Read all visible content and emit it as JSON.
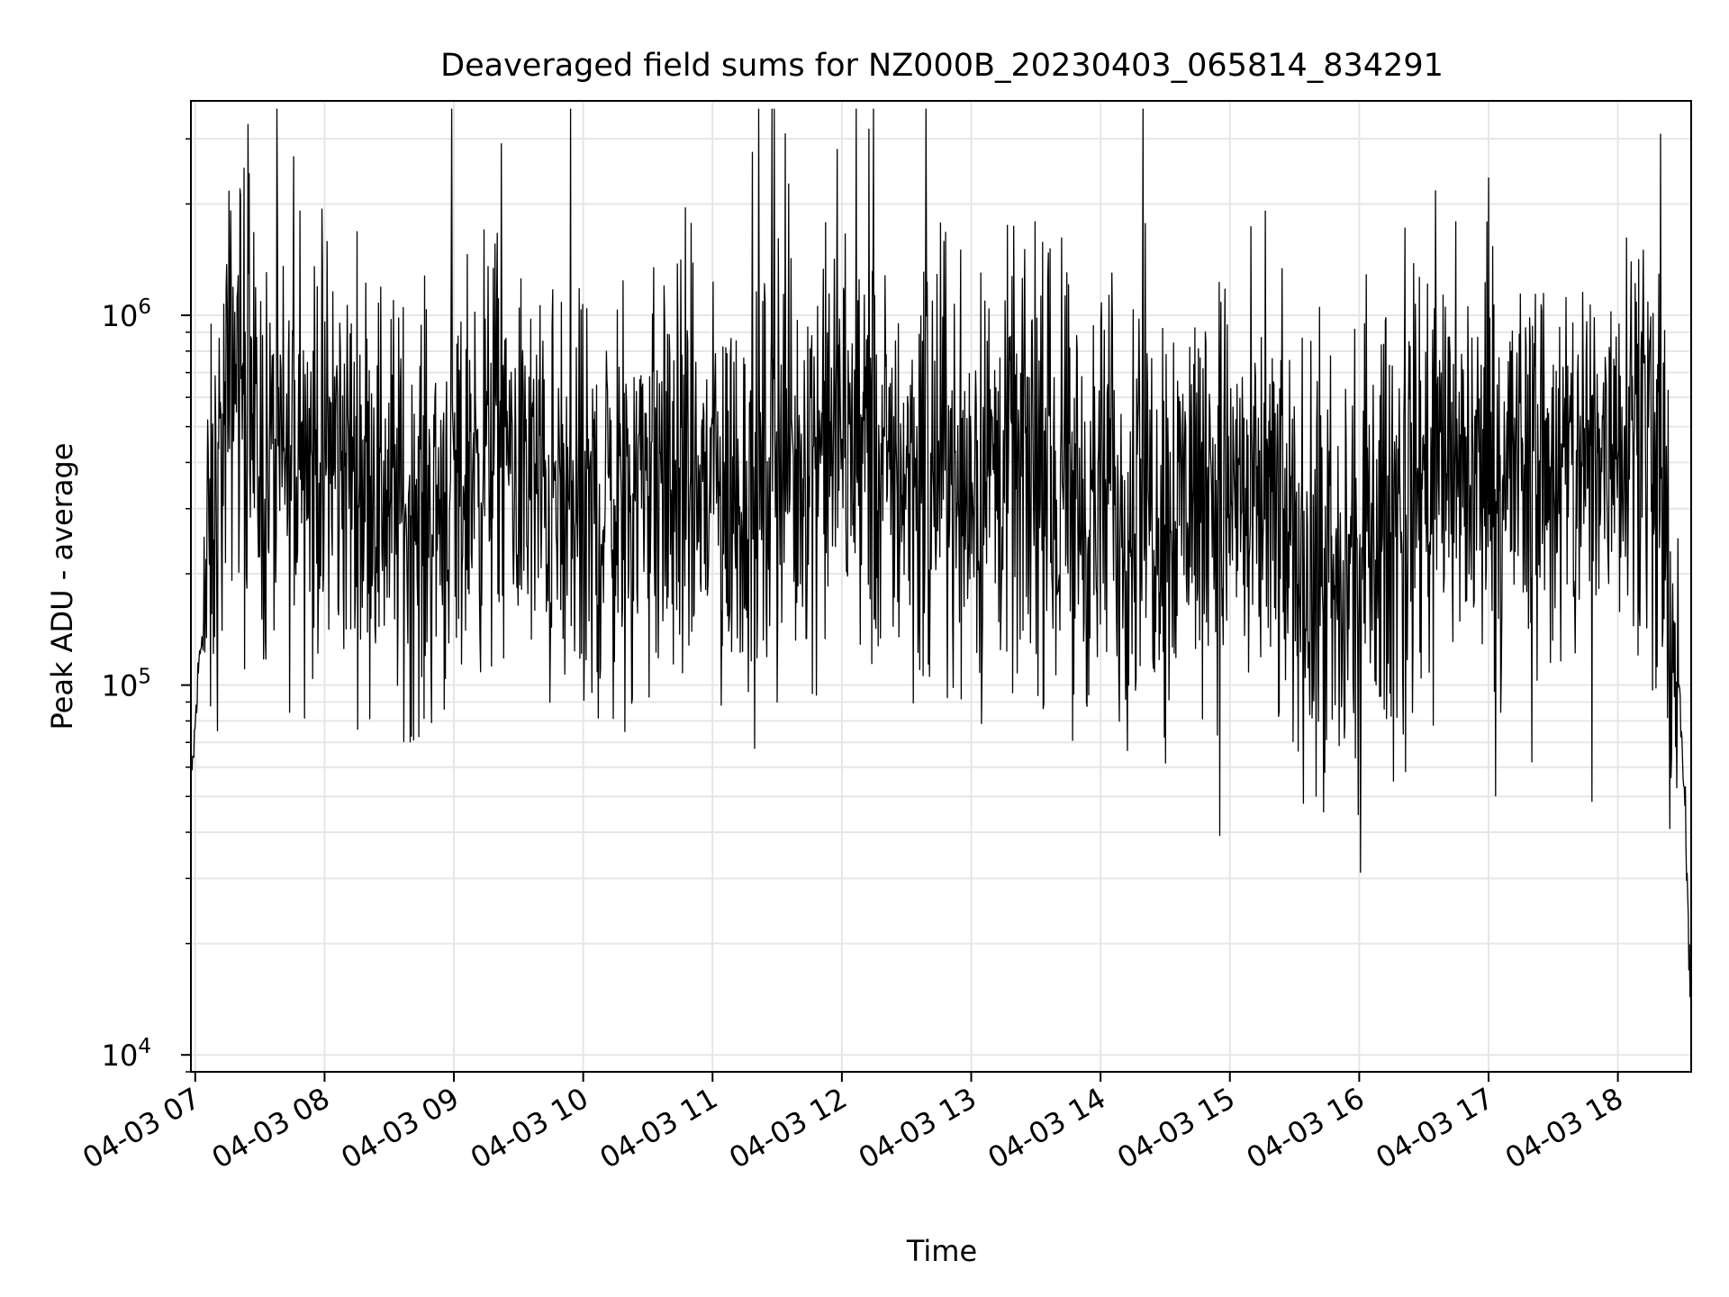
{
  "chart_data": {
    "type": "line",
    "title": "Deaveraged field sums for NZ000B_20230403_065814_834291",
    "xlabel": "Time",
    "ylabel": "Peak ADU - average",
    "yscale": "log",
    "ylim": [
      9000,
      3800000
    ],
    "xlim": [
      "2023-04-03 06:58",
      "2023-04-03 18:34"
    ],
    "grid": true,
    "line_color": "#000000",
    "grid_color": "#e6e6e6",
    "x_ticks": [
      {
        "value": "2023-04-03 07:00",
        "label": "04-03 07"
      },
      {
        "value": "2023-04-03 08:00",
        "label": "04-03 08"
      },
      {
        "value": "2023-04-03 09:00",
        "label": "04-03 09"
      },
      {
        "value": "2023-04-03 10:00",
        "label": "04-03 10"
      },
      {
        "value": "2023-04-03 11:00",
        "label": "04-03 11"
      },
      {
        "value": "2023-04-03 12:00",
        "label": "04-03 12"
      },
      {
        "value": "2023-04-03 13:00",
        "label": "04-03 13"
      },
      {
        "value": "2023-04-03 14:00",
        "label": "04-03 14"
      },
      {
        "value": "2023-04-03 15:00",
        "label": "04-03 15"
      },
      {
        "value": "2023-04-03 16:00",
        "label": "04-03 16"
      },
      {
        "value": "2023-04-03 17:00",
        "label": "04-03 17"
      },
      {
        "value": "2023-04-03 18:00",
        "label": "04-03 18"
      }
    ],
    "y_ticks": [
      {
        "value": 10000,
        "base": "10",
        "exp": "4"
      },
      {
        "value": 100000,
        "base": "10",
        "exp": "5"
      },
      {
        "value": 1000000,
        "base": "10",
        "exp": "6"
      }
    ],
    "series": [
      {
        "points": [
          [
            "2023-04-03 06:58",
            50000
          ],
          [
            "2023-04-03 07:02",
            120000
          ],
          [
            "2023-04-03 07:06",
            200000
          ],
          [
            "2023-04-03 07:10",
            300000
          ],
          [
            "2023-04-03 07:14",
            500000
          ],
          [
            "2023-04-03 07:18",
            800000
          ],
          [
            "2023-04-03 07:22",
            700000
          ],
          [
            "2023-04-03 07:26",
            500000
          ],
          [
            "2023-04-03 07:30",
            400000
          ],
          [
            "2023-04-03 07:40",
            380000
          ],
          [
            "2023-04-03 07:50",
            400000
          ],
          [
            "2023-04-03 08:00",
            420000
          ],
          [
            "2023-04-03 08:10",
            400000
          ],
          [
            "2023-04-03 08:20",
            380000
          ],
          [
            "2023-04-03 08:30",
            340000
          ],
          [
            "2023-04-03 08:40",
            280000
          ],
          [
            "2023-04-03 08:50",
            300000
          ],
          [
            "2023-04-03 09:00",
            360000
          ],
          [
            "2023-04-03 09:10",
            420000
          ],
          [
            "2023-04-03 09:20",
            450000
          ],
          [
            "2023-04-03 09:30",
            400000
          ],
          [
            "2023-04-03 09:40",
            330000
          ],
          [
            "2023-04-03 09:50",
            280000
          ],
          [
            "2023-04-03 10:00",
            250000
          ],
          [
            "2023-04-03 10:10",
            300000
          ],
          [
            "2023-04-03 10:20",
            350000
          ],
          [
            "2023-04-03 10:30",
            380000
          ],
          [
            "2023-04-03 10:40",
            360000
          ],
          [
            "2023-04-03 10:50",
            340000
          ],
          [
            "2023-04-03 11:00",
            330000
          ],
          [
            "2023-04-03 11:10",
            320000
          ],
          [
            "2023-04-03 11:20",
            340000
          ],
          [
            "2023-04-03 11:30",
            400000
          ],
          [
            "2023-04-03 11:40",
            450000
          ],
          [
            "2023-04-03 11:50",
            470000
          ],
          [
            "2023-04-03 12:00",
            430000
          ],
          [
            "2023-04-03 12:10",
            400000
          ],
          [
            "2023-04-03 12:20",
            380000
          ],
          [
            "2023-04-03 12:30",
            390000
          ],
          [
            "2023-04-03 12:40",
            400000
          ],
          [
            "2023-04-03 12:50",
            380000
          ],
          [
            "2023-04-03 13:00",
            360000
          ],
          [
            "2023-04-03 13:10",
            370000
          ],
          [
            "2023-04-03 13:20",
            380000
          ],
          [
            "2023-04-03 13:30",
            360000
          ],
          [
            "2023-04-03 13:40",
            330000
          ],
          [
            "2023-04-03 13:50",
            300000
          ],
          [
            "2023-04-03 14:00",
            290000
          ],
          [
            "2023-04-03 14:10",
            300000
          ],
          [
            "2023-04-03 14:20",
            320000
          ],
          [
            "2023-04-03 14:30",
            330000
          ],
          [
            "2023-04-03 14:40",
            340000
          ],
          [
            "2023-04-03 14:50",
            350000
          ],
          [
            "2023-04-03 15:00",
            340000
          ],
          [
            "2023-04-03 15:10",
            320000
          ],
          [
            "2023-04-03 15:20",
            280000
          ],
          [
            "2023-04-03 15:30",
            230000
          ],
          [
            "2023-04-03 15:40",
            190000
          ],
          [
            "2023-04-03 15:50",
            180000
          ],
          [
            "2023-04-03 16:00",
            200000
          ],
          [
            "2023-04-03 16:10",
            260000
          ],
          [
            "2023-04-03 16:20",
            330000
          ],
          [
            "2023-04-03 16:30",
            380000
          ],
          [
            "2023-04-03 16:40",
            400000
          ],
          [
            "2023-04-03 16:50",
            380000
          ],
          [
            "2023-04-03 17:00",
            360000
          ],
          [
            "2023-04-03 17:10",
            380000
          ],
          [
            "2023-04-03 17:20",
            400000
          ],
          [
            "2023-04-03 17:30",
            380000
          ],
          [
            "2023-04-03 17:40",
            360000
          ],
          [
            "2023-04-03 17:50",
            400000
          ],
          [
            "2023-04-03 18:00",
            520000
          ],
          [
            "2023-04-03 18:06",
            620000
          ],
          [
            "2023-04-03 18:12",
            550000
          ],
          [
            "2023-04-03 18:18",
            300000
          ],
          [
            "2023-04-03 18:24",
            180000
          ],
          [
            "2023-04-03 18:28",
            100000
          ],
          [
            "2023-04-03 18:31",
            50000
          ],
          [
            "2023-04-03 18:34",
            12000
          ]
        ]
      }
    ]
  }
}
